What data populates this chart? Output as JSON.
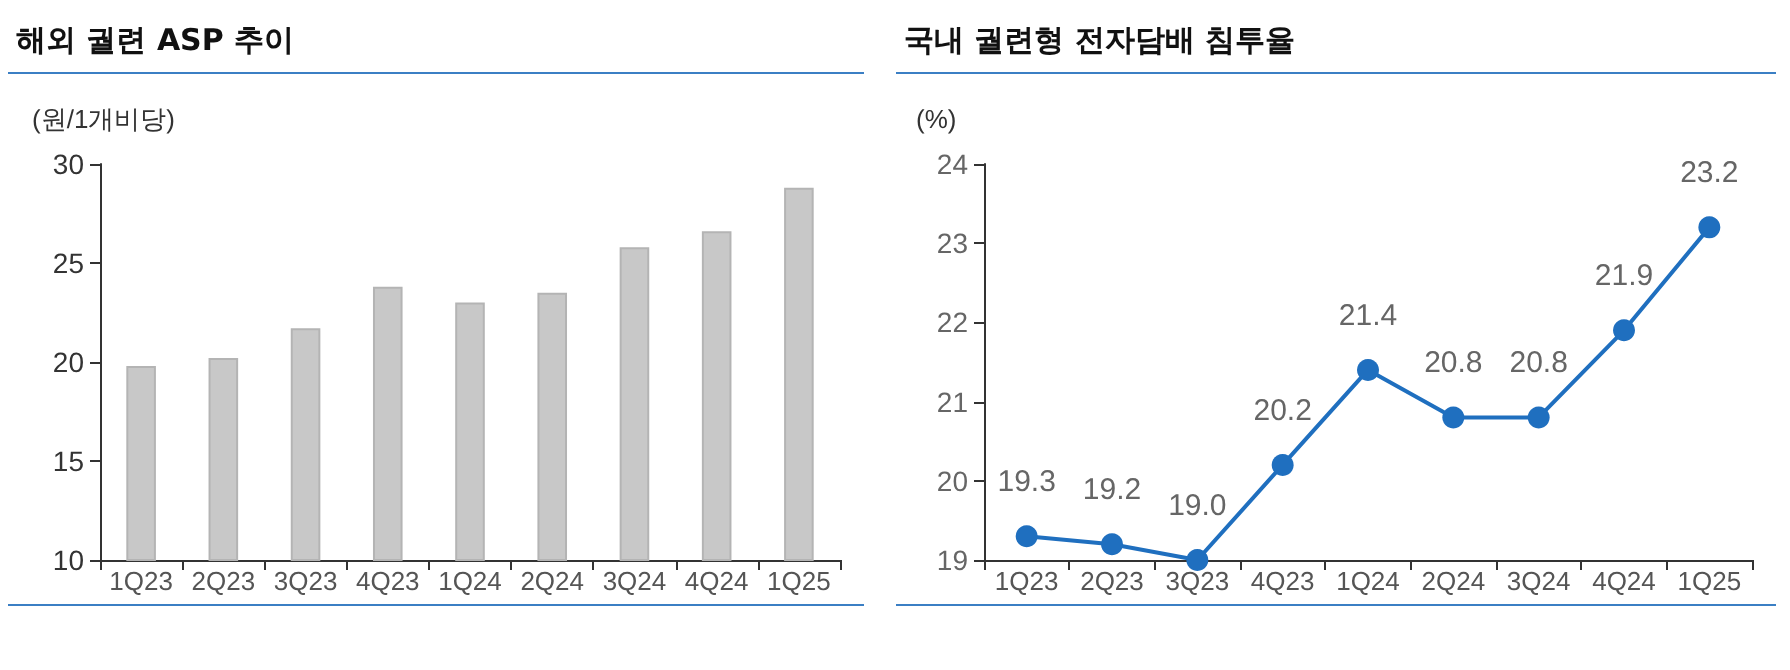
{
  "chart_data": [
    {
      "type": "bar",
      "title": "해외 궐련 ASP 추이",
      "ylabel": "(원/1개비당)",
      "categories": [
        "1Q23",
        "2Q23",
        "3Q23",
        "4Q23",
        "1Q24",
        "2Q24",
        "3Q24",
        "4Q24",
        "1Q25"
      ],
      "values": [
        19.8,
        20.2,
        21.7,
        23.8,
        23.0,
        23.5,
        25.8,
        26.6,
        28.8
      ],
      "color": "#c8c8c8",
      "ylim": [
        10,
        30
      ],
      "yticks": [
        10,
        15,
        20,
        25,
        30
      ],
      "grid": false
    },
    {
      "type": "line",
      "title": "국내 궐련형 전자담배 침투율",
      "ylabel": "(%)",
      "categories": [
        "1Q23",
        "2Q23",
        "3Q23",
        "4Q23",
        "1Q24",
        "2Q24",
        "3Q24",
        "4Q24",
        "1Q25"
      ],
      "series": [
        {
          "color": "#1f6fbf",
          "values": [
            19.3,
            19.2,
            19.0,
            20.2,
            21.4,
            20.8,
            20.8,
            21.9,
            23.2
          ],
          "value_labels": [
            "19.3",
            "19.2",
            "19.0",
            "20.2",
            "21.4",
            "20.8",
            "20.8",
            "21.9",
            "23.2"
          ]
        }
      ],
      "marker": "circle",
      "line_style": "solid",
      "ylim": [
        19,
        24
      ],
      "yticks": [
        19,
        20,
        21,
        22,
        23,
        24
      ],
      "grid": false
    }
  ]
}
